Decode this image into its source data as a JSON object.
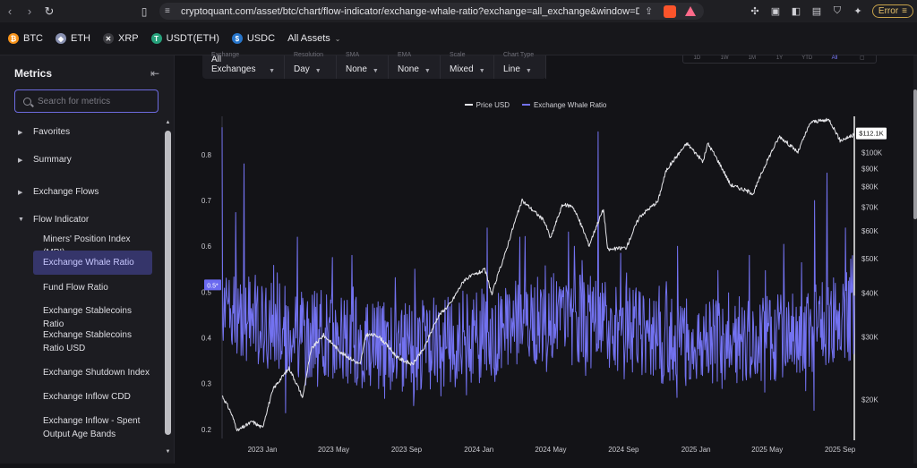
{
  "browser": {
    "url": "cryptoquant.com/asset/btc/chart/flow-indicator/exchange-whale-ratio?exchange=all_exchange&window=DAY&sma=0&...",
    "error_label": "Error"
  },
  "assets": [
    {
      "label": "BTC",
      "color": "#f7931a",
      "glyph": "₿"
    },
    {
      "label": "ETH",
      "color": "#8a92b2",
      "glyph": "◆"
    },
    {
      "label": "XRP",
      "color": "#3a3a3f",
      "glyph": "✕"
    },
    {
      "label": "USDT(ETH)",
      "color": "#26a17b",
      "glyph": "T"
    },
    {
      "label": "USDC",
      "color": "#2775ca",
      "glyph": "$"
    }
  ],
  "all_assets_label": "All Assets",
  "sidebar": {
    "title": "Metrics",
    "search_placeholder": "Search for metrics",
    "groups": [
      {
        "label": "Favorites",
        "expanded": false
      },
      {
        "label": "Summary",
        "expanded": false
      },
      {
        "label": "Exchange Flows",
        "expanded": false
      },
      {
        "label": "Flow Indicator",
        "expanded": true
      }
    ],
    "items": [
      "Miners' Position Index (MPI)",
      "Exchange Whale Ratio",
      "Fund Flow Ratio",
      "Exchange Stablecoins Ratio",
      "Exchange Stablecoins Ratio USD",
      "Exchange Shutdown Index",
      "Exchange Inflow CDD",
      "Exchange Inflow - Spent Output Age Bands"
    ],
    "active_item": "Exchange Whale Ratio"
  },
  "filters": [
    {
      "label": "Exchange",
      "value": "All Exchanges"
    },
    {
      "label": "Resolution",
      "value": "Day"
    },
    {
      "label": "SMA",
      "value": "None"
    },
    {
      "label": "EMA",
      "value": "None"
    },
    {
      "label": "Scale",
      "value": "Mixed"
    },
    {
      "label": "Chart Type",
      "value": "Line"
    }
  ],
  "ranges": [
    "1D",
    "1W",
    "1M",
    "1Y",
    "YTD",
    "All"
  ],
  "active_range": "All",
  "chart_data": {
    "type": "line",
    "legend": [
      "Price USD",
      "Exchange Whale Ratio"
    ],
    "colors": {
      "price": "#e6e6ea",
      "ratio": "#7372f0",
      "accent": "#6b6af0"
    },
    "left_axis_ticks": [
      "0.8",
      "0.7",
      "0.6",
      "0.5",
      "0.4",
      "0.3",
      "0.2"
    ],
    "left_axis_range": [
      0.18,
      0.88
    ],
    "right_axis_ticks": [
      "$100K",
      "$90K",
      "$80K",
      "$70K",
      "$60K",
      "$50K",
      "$40K",
      "$30K",
      "$20K"
    ],
    "right_axis_scale": "log",
    "right_axis_range": [
      15500,
      125000
    ],
    "x_ticks": [
      "2023 Jan",
      "2023 May",
      "2023 Sep",
      "2024 Jan",
      "2024 May",
      "2024 Sep",
      "2025 Jan",
      "2025 May",
      "2025 Sep"
    ],
    "current_ratio_label": "0.5*",
    "current_price_label": "$112.1K",
    "x_range": [
      "2022-10-25",
      "2025-09-25"
    ],
    "price_points": [
      [
        "2022-10-25",
        20500
      ],
      [
        "2022-11-08",
        18500
      ],
      [
        "2022-11-20",
        16300
      ],
      [
        "2022-12-15",
        17300
      ],
      [
        "2023-01-01",
        16600
      ],
      [
        "2023-01-20",
        21500
      ],
      [
        "2023-02-15",
        24500
      ],
      [
        "2023-03-10",
        20200
      ],
      [
        "2023-03-25",
        27800
      ],
      [
        "2023-04-14",
        30400
      ],
      [
        "2023-05-15",
        27000
      ],
      [
        "2023-06-15",
        25100
      ],
      [
        "2023-06-25",
        30500
      ],
      [
        "2023-07-15",
        30300
      ],
      [
        "2023-08-17",
        26200
      ],
      [
        "2023-09-11",
        25100
      ],
      [
        "2023-10-01",
        27900
      ],
      [
        "2023-10-25",
        34500
      ],
      [
        "2023-11-15",
        37500
      ],
      [
        "2023-12-08",
        43700
      ],
      [
        "2024-01-11",
        46500
      ],
      [
        "2024-01-23",
        39500
      ],
      [
        "2024-02-15",
        52000
      ],
      [
        "2024-03-05",
        66000
      ],
      [
        "2024-03-14",
        73000
      ],
      [
        "2024-04-20",
        64000
      ],
      [
        "2024-05-01",
        57000
      ],
      [
        "2024-05-21",
        71000
      ],
      [
        "2024-06-07",
        70500
      ],
      [
        "2024-07-05",
        54500
      ],
      [
        "2024-07-29",
        69000
      ],
      [
        "2024-08-05",
        53000
      ],
      [
        "2024-09-06",
        53800
      ],
      [
        "2024-09-28",
        65800
      ],
      [
        "2024-10-29",
        72700
      ],
      [
        "2024-11-12",
        89000
      ],
      [
        "2024-12-17",
        106000
      ],
      [
        "2025-01-13",
        94000
      ],
      [
        "2025-01-21",
        106000
      ],
      [
        "2025-02-28",
        81000
      ],
      [
        "2025-04-08",
        76500
      ],
      [
        "2025-05-22",
        111000
      ],
      [
        "2025-06-22",
        100000
      ],
      [
        "2025-07-14",
        122000
      ],
      [
        "2025-08-14",
        123500
      ],
      [
        "2025-09-01",
        108000
      ],
      [
        "2025-09-25",
        112100
      ]
    ],
    "ratio_peaks": [
      [
        "2022-10-25",
        0.86
      ],
      [
        "2022-12-01",
        0.78
      ],
      [
        "2023-03-01",
        0.62
      ],
      [
        "2023-06-01",
        0.58
      ],
      [
        "2023-09-15",
        0.55
      ],
      [
        "2024-01-15",
        0.64
      ],
      [
        "2024-03-10",
        0.62
      ],
      [
        "2024-06-10",
        0.6
      ],
      [
        "2024-07-20",
        0.85
      ],
      [
        "2024-12-01",
        0.6
      ],
      [
        "2025-04-01",
        0.58
      ],
      [
        "2025-07-20",
        0.7
      ],
      [
        "2025-08-10",
        0.76
      ],
      [
        "2025-09-10",
        0.64
      ]
    ],
    "ratio_baseline": [
      [
        "2022-10-25",
        0.48
      ],
      [
        "2023-01-01",
        0.43
      ],
      [
        "2023-05-01",
        0.4
      ],
      [
        "2023-09-01",
        0.38
      ],
      [
        "2024-01-01",
        0.4
      ],
      [
        "2024-05-01",
        0.45
      ],
      [
        "2024-09-01",
        0.42
      ],
      [
        "2025-01-01",
        0.38
      ],
      [
        "2025-05-01",
        0.4
      ],
      [
        "2025-09-25",
        0.45
      ]
    ]
  }
}
